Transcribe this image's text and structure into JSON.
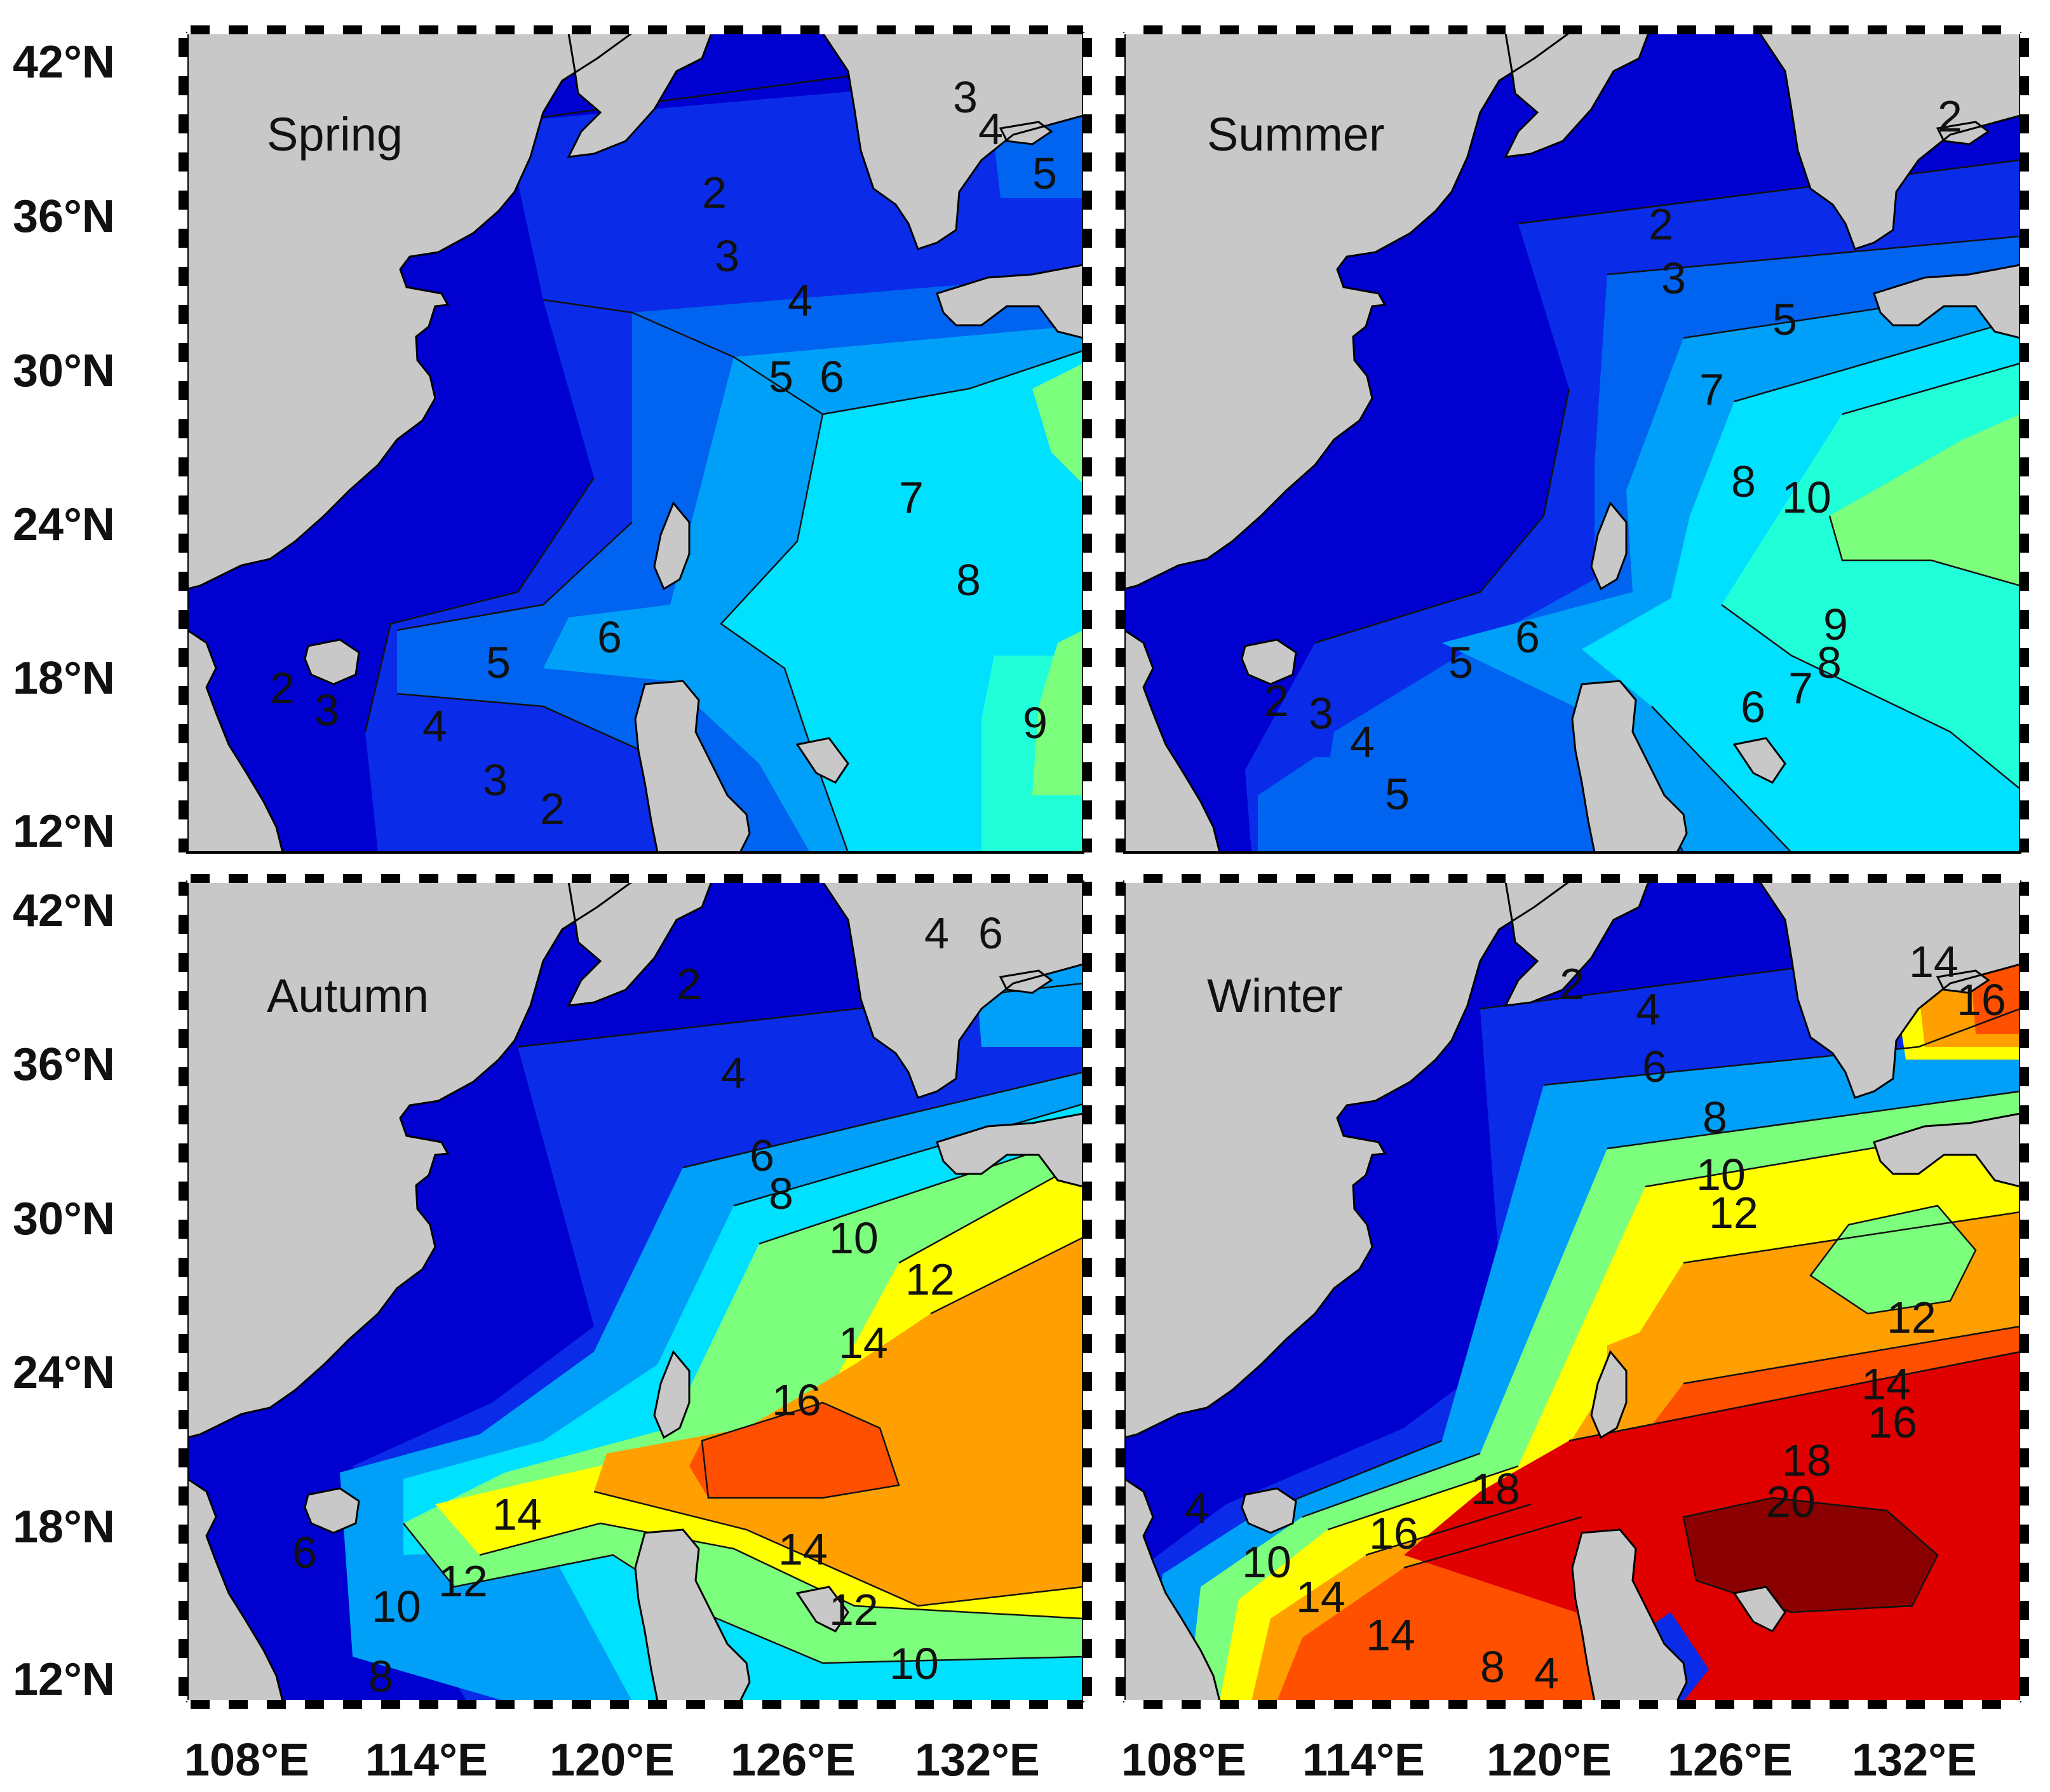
{
  "panels": [
    {
      "id": "spring",
      "season": "Spring",
      "contour_labels": [
        "3",
        "4",
        "5",
        "2",
        "3",
        "4",
        "5",
        "6",
        "7",
        "8",
        "6",
        "5",
        "2",
        "3",
        "4",
        "3",
        "2",
        "9"
      ]
    },
    {
      "id": "summer",
      "season": "Summer",
      "contour_labels": [
        "2",
        "2",
        "3",
        "5",
        "7",
        "8",
        "10",
        "9",
        "8",
        "7",
        "6",
        "6",
        "5",
        "2",
        "3",
        "4",
        "5"
      ]
    },
    {
      "id": "autumn",
      "season": "Autumn",
      "contour_labels": [
        "4",
        "6",
        "2",
        "4",
        "6",
        "8",
        "10",
        "12",
        "14",
        "16",
        "14",
        "14",
        "12",
        "10",
        "6",
        "12",
        "10",
        "8"
      ]
    },
    {
      "id": "winter",
      "season": "Winter",
      "contour_labels": [
        "2",
        "4",
        "6",
        "8",
        "10",
        "12",
        "14",
        "16",
        "12",
        "14",
        "16",
        "18",
        "20",
        "18",
        "16",
        "4",
        "10",
        "14",
        "14",
        "8",
        "4"
      ]
    }
  ],
  "axes": {
    "lat_ticks": [
      "42°N",
      "36°N",
      "30°N",
      "24°N",
      "18°N",
      "12°N"
    ],
    "lon_ticks": [
      "108°E",
      "114°E",
      "120°E",
      "126°E",
      "132°E"
    ]
  },
  "colors": {
    "land": "#c8c8c8",
    "ocean_scale": [
      "#00008f",
      "#0000d0",
      "#0a2ce8",
      "#0064f0",
      "#00a0f8",
      "#00e0ff",
      "#20ffd8",
      "#7cff7c",
      "#d8ff28",
      "#ffff00",
      "#ffcc00",
      "#ffa000",
      "#ff5000",
      "#e00000",
      "#8a0000"
    ]
  }
}
